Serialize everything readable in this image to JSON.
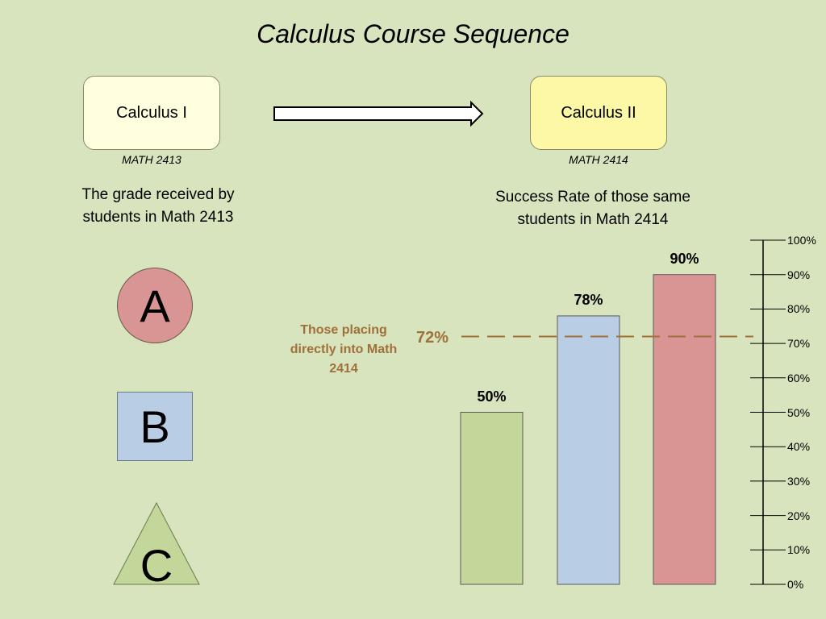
{
  "title": "Calculus Course Sequence",
  "course_from": {
    "name": "Calculus I",
    "code": "MATH 2413"
  },
  "course_to": {
    "name": "Calculus II",
    "code": "MATH 2414"
  },
  "left_caption": "The grade received by students in Math 2413",
  "right_caption": "Success Rate of those same students in Math 2414",
  "grades": {
    "a": "A",
    "b": "B",
    "c": "C"
  },
  "reference": {
    "label": "Those placing directly into Math 2414",
    "value_label": "72%"
  },
  "chart_data": {
    "type": "bar",
    "categories": [
      "A",
      "B",
      "C"
    ],
    "values": [
      90,
      78,
      50
    ],
    "data_labels": [
      "90%",
      "78%",
      "50%"
    ],
    "ylim": [
      0,
      100
    ],
    "yticks": [
      0,
      10,
      20,
      30,
      40,
      50,
      60,
      70,
      80,
      90,
      100
    ],
    "ytick_labels": [
      "0%",
      "10%",
      "20%",
      "30%",
      "40%",
      "50%",
      "60%",
      "70%",
      "80%",
      "90%",
      "100%"
    ],
    "reference_line": 72,
    "colors": {
      "A": "#d99594",
      "B": "#b9cde5",
      "C": "#c4d79b"
    },
    "reference_color": "#a0703a"
  }
}
